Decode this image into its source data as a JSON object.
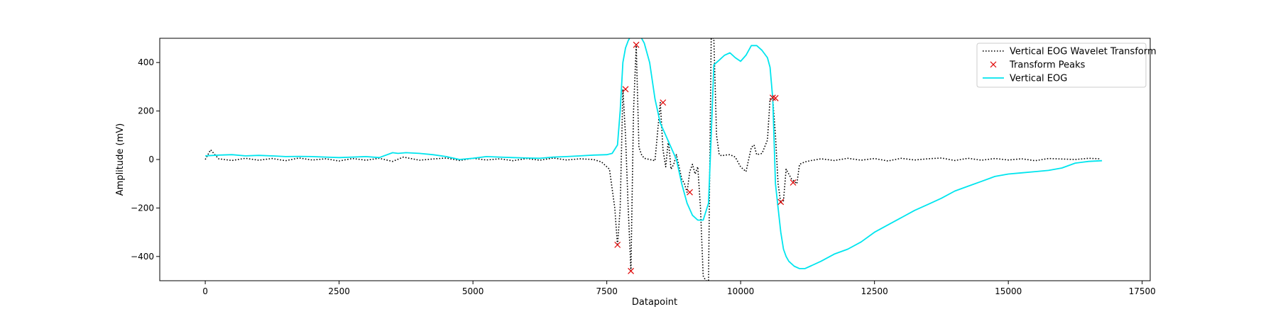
{
  "chart_data": {
    "type": "line",
    "title": "",
    "xlabel": "Datapoint",
    "ylabel": "Amplitude (mV)",
    "xlim": [
      -850,
      17650
    ],
    "ylim": [
      -500,
      500
    ],
    "x_ticks": [
      0,
      2500,
      5000,
      7500,
      10000,
      12500,
      15000,
      17500
    ],
    "y_ticks": [
      -400,
      -200,
      0,
      200,
      400
    ],
    "grid": false,
    "legend_position": "top-right",
    "series": [
      {
        "name": "Vertical EOG Wavelet Transform",
        "style": "dotted",
        "color": "#000000",
        "x": [
          0,
          100,
          250,
          500,
          750,
          1000,
          1250,
          1500,
          1750,
          2000,
          2250,
          2500,
          2750,
          3000,
          3250,
          3500,
          3700,
          4000,
          4250,
          4500,
          4750,
          5000,
          5250,
          5500,
          5750,
          6000,
          6250,
          6500,
          6750,
          7000,
          7250,
          7400,
          7550,
          7650,
          7700,
          7750,
          7800,
          7850,
          7900,
          7950,
          8000,
          8050,
          8100,
          8150,
          8200,
          8300,
          8400,
          8500,
          8550,
          8600,
          8650,
          8700,
          8750,
          8800,
          8850,
          8900,
          8950,
          9000,
          9050,
          9100,
          9150,
          9200,
          9250,
          9300,
          9350,
          9400,
          9450,
          9500,
          9550,
          9600,
          9650,
          9700,
          9800,
          9900,
          10000,
          10100,
          10200,
          10250,
          10300,
          10400,
          10500,
          10550,
          10600,
          10650,
          10700,
          10750,
          10800,
          10850,
          10900,
          10950,
          11000,
          11050,
          11100,
          11200,
          11300,
          11500,
          11750,
          12000,
          12250,
          12500,
          12750,
          13000,
          13250,
          13500,
          13750,
          14000,
          14250,
          14500,
          14750,
          15000,
          15250,
          15500,
          15750,
          16000,
          16250,
          16500,
          16700
        ],
        "y": [
          0,
          40,
          3,
          -4,
          5,
          -3,
          4,
          -5,
          6,
          -2,
          3,
          -6,
          4,
          -3,
          5,
          -8,
          10,
          -3,
          2,
          6,
          -4,
          5,
          -2,
          3,
          -5,
          4,
          -3,
          6,
          -2,
          3,
          0,
          -10,
          -40,
          -200,
          -355,
          -200,
          290,
          100,
          -200,
          -460,
          200,
          470,
          50,
          20,
          5,
          0,
          -5,
          235,
          40,
          -30,
          80,
          -40,
          -20,
          20,
          -30,
          -80,
          -100,
          -135,
          -50,
          -20,
          -60,
          -30,
          -200,
          -480,
          -500,
          -500,
          500,
          500,
          100,
          20,
          15,
          18,
          20,
          10,
          -30,
          -50,
          50,
          60,
          20,
          25,
          80,
          250,
          250,
          100,
          -100,
          -180,
          -170,
          -40,
          -60,
          -80,
          -90,
          -100,
          -20,
          -10,
          -5,
          3,
          -4,
          5,
          -3,
          4,
          -6,
          5,
          -2,
          3,
          6,
          -4,
          5,
          -3,
          4,
          -2,
          3,
          -5,
          4,
          2,
          0,
          5,
          3
        ]
      },
      {
        "name": "Transform Peaks",
        "style": "markers",
        "marker": "x",
        "color": "#e00000",
        "x": [
          7700,
          7850,
          7950,
          8050,
          8550,
          9050,
          10600,
          10650,
          10750,
          10980
        ],
        "y": [
          -352,
          290,
          -460,
          473,
          235,
          -135,
          255,
          253,
          -175,
          -95
        ]
      },
      {
        "name": "Vertical EOG",
        "style": "solid",
        "color": "#00e5ee",
        "x": [
          0,
          250,
          500,
          750,
          1000,
          1250,
          1500,
          1750,
          2000,
          2250,
          2500,
          2750,
          3000,
          3250,
          3500,
          3600,
          3750,
          4000,
          4250,
          4500,
          4750,
          5000,
          5250,
          5500,
          5750,
          6000,
          6250,
          6500,
          6750,
          7000,
          7250,
          7500,
          7600,
          7700,
          7750,
          7800,
          7850,
          7900,
          7950,
          8000,
          8100,
          8200,
          8300,
          8400,
          8500,
          8600,
          8700,
          8800,
          8900,
          9000,
          9100,
          9200,
          9300,
          9400,
          9450,
          9500,
          9550,
          9600,
          9700,
          9800,
          9900,
          10000,
          10100,
          10200,
          10300,
          10400,
          10500,
          10550,
          10600,
          10650,
          10700,
          10750,
          10800,
          10850,
          10900,
          11000,
          11100,
          11200,
          11300,
          11500,
          11750,
          12000,
          12250,
          12500,
          12750,
          13000,
          13250,
          13500,
          13750,
          14000,
          14250,
          14500,
          14750,
          15000,
          15250,
          15500,
          15750,
          16000,
          16250,
          16500,
          16750
        ],
        "y": [
          15,
          18,
          20,
          15,
          17,
          15,
          12,
          13,
          12,
          10,
          8,
          10,
          12,
          8,
          28,
          25,
          28,
          25,
          20,
          12,
          0,
          5,
          12,
          10,
          8,
          6,
          5,
          10,
          12,
          15,
          18,
          20,
          25,
          60,
          200,
          400,
          460,
          490,
          510,
          520,
          520,
          480,
          400,
          250,
          150,
          100,
          50,
          0,
          -100,
          -180,
          -230,
          -250,
          -250,
          -180,
          100,
          390,
          400,
          410,
          430,
          440,
          420,
          405,
          430,
          470,
          470,
          450,
          420,
          380,
          250,
          -100,
          -200,
          -300,
          -370,
          -400,
          -420,
          -440,
          -450,
          -450,
          -440,
          -420,
          -390,
          -370,
          -340,
          -300,
          -270,
          -240,
          -210,
          -185,
          -160,
          -130,
          -110,
          -90,
          -70,
          -60,
          -55,
          -50,
          -45,
          -35,
          -15,
          -8,
          -5
        ]
      }
    ]
  }
}
